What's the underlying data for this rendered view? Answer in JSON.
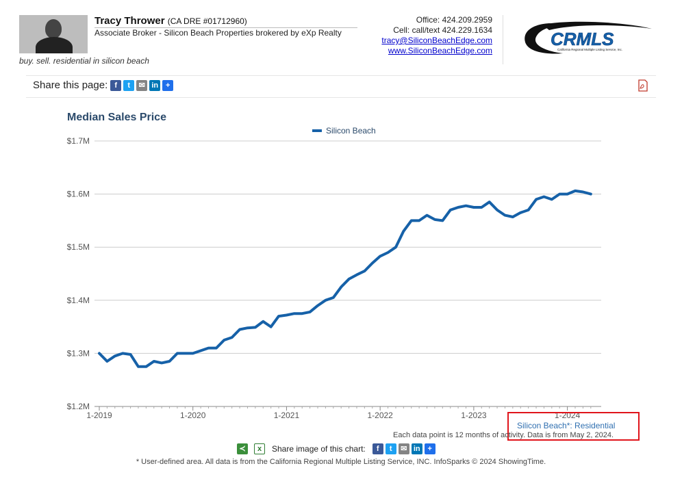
{
  "agent": {
    "name": "Tracy Thrower",
    "dre": "(CA DRE #01712960)",
    "title": "Associate Broker - Silicon Beach Properties brokered by eXp Realty",
    "tagline": "buy. sell. residential in silicon beach",
    "office": "Office: 424.209.2959",
    "cell": "Cell: call/text 424.229.1634",
    "email": "tracy@SiliconBeachEdge.com",
    "website": "www.SiliconBeachEdge.com"
  },
  "logo": {
    "text": "CRMLS",
    "subtext": "California Regional Multiple Listing Service, Inc."
  },
  "share": {
    "label": "Share this page:",
    "icons": [
      "facebook-icon",
      "twitter-icon",
      "email-icon",
      "linkedin-icon",
      "plus-share-icon"
    ]
  },
  "colors": {
    "series": "#1661a8",
    "title": "#2b4a6b",
    "highlight": "#e0141b",
    "facebook": "#3b5998",
    "twitter": "#1da1f2",
    "email": "#848484",
    "linkedin": "#0077b5",
    "share": "#1f6feb"
  },
  "chart_data": {
    "type": "line",
    "title": "Median Sales Price",
    "series": [
      {
        "name": "Silicon Beach",
        "values": [
          1300000,
          1285000,
          1295000,
          1300000,
          1298000,
          1275000,
          1275000,
          1285000,
          1282000,
          1285000,
          1300000,
          1300000,
          1300000,
          1305000,
          1310000,
          1310000,
          1325000,
          1330000,
          1345000,
          1348000,
          1349000,
          1360000,
          1350000,
          1370000,
          1372000,
          1375000,
          1375000,
          1378000,
          1390000,
          1400000,
          1405000,
          1425000,
          1440000,
          1448000,
          1455000,
          1470000,
          1483000,
          1490000,
          1500000,
          1530000,
          1550000,
          1550000,
          1560000,
          1552000,
          1550000,
          1570000,
          1575000,
          1578000,
          1575000,
          1575000,
          1585000,
          1570000,
          1560000,
          1557000,
          1565000,
          1570000,
          1590000,
          1595000,
          1590000,
          1600000,
          1600000,
          1606000,
          1604000,
          1600000
        ]
      }
    ],
    "x_start": "1-2019",
    "x_step": "1 month",
    "x_ticks": [
      "1-2019",
      "1-2020",
      "1-2021",
      "1-2022",
      "1-2023",
      "1-2024"
    ],
    "y_ticks": [
      "$1.2M",
      "$1.3M",
      "$1.4M",
      "$1.5M",
      "$1.6M",
      "$1.7M"
    ],
    "ylim": [
      1200000,
      1700000
    ],
    "grid": true,
    "legend_position": "top-center"
  },
  "chart_footer": {
    "selection": "Silicon Beach*: Residential",
    "note": "Each data point is 12 months of activity. Data is from May 2, 2024.",
    "share_label": "Share image of this chart:",
    "footnote": "* User-defined area. All data is from the California Regional Multiple Listing Service, INC. InfoSparks © 2024 ShowingTime."
  }
}
